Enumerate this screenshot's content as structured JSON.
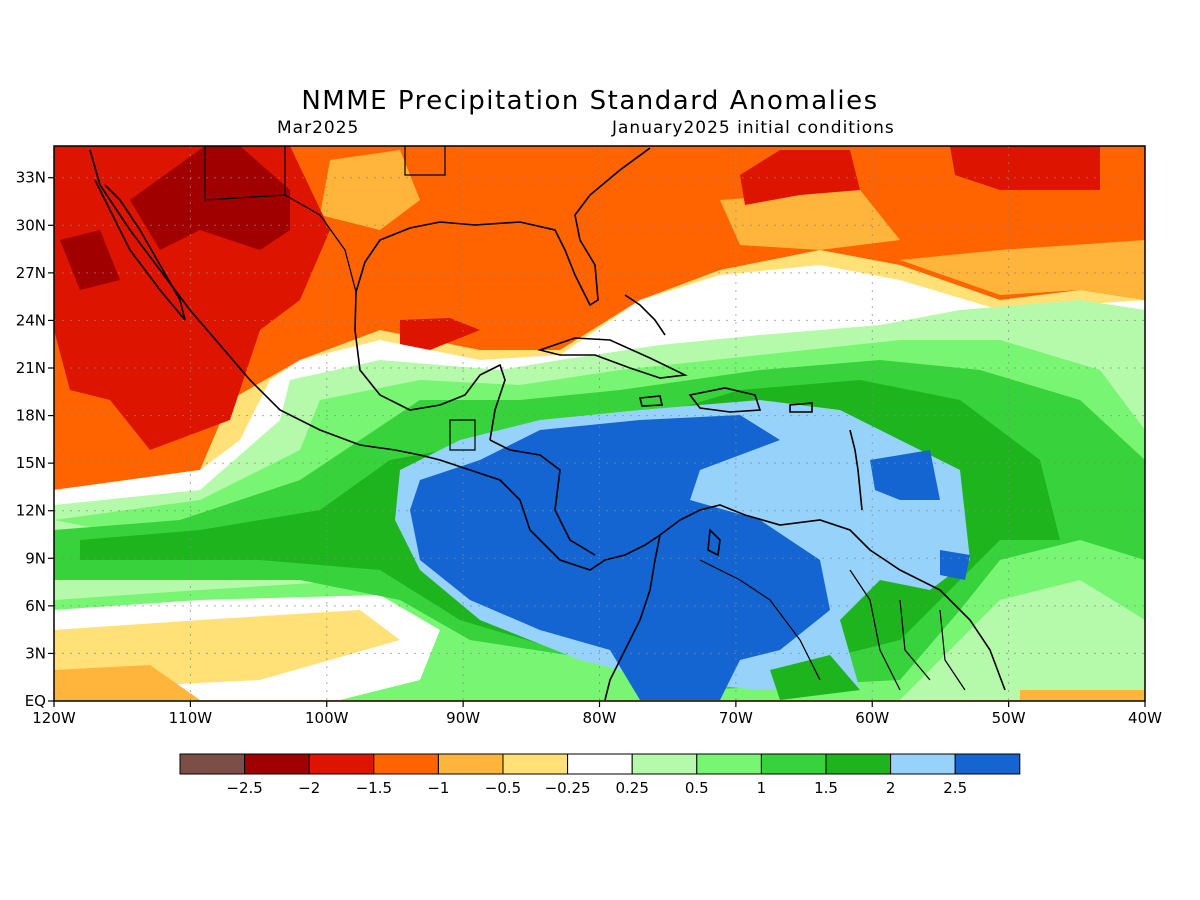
{
  "title": "NMME Precipitation Standard Anomalies",
  "subtitle_left": "Mar2025",
  "subtitle_right": "January2025 initial conditions",
  "map": {
    "lon_range": [
      -120,
      -40
    ],
    "lat_range": [
      0,
      35
    ],
    "lon_ticks": [
      {
        "lon": -120,
        "label": "120W"
      },
      {
        "lon": -110,
        "label": "110W"
      },
      {
        "lon": -100,
        "label": "100W"
      },
      {
        "lon": -90,
        "label": "90W"
      },
      {
        "lon": -80,
        "label": "80W"
      },
      {
        "lon": -70,
        "label": "70W"
      },
      {
        "lon": -60,
        "label": "60W"
      },
      {
        "lon": -50,
        "label": "50W"
      },
      {
        "lon": -40,
        "label": "40W"
      }
    ],
    "lat_ticks": [
      {
        "lat": 0,
        "label": "EQ"
      },
      {
        "lat": 3,
        "label": "3N"
      },
      {
        "lat": 6,
        "label": "6N"
      },
      {
        "lat": 9,
        "label": "9N"
      },
      {
        "lat": 12,
        "label": "12N"
      },
      {
        "lat": 15,
        "label": "15N"
      },
      {
        "lat": 18,
        "label": "18N"
      },
      {
        "lat": 21,
        "label": "21N"
      },
      {
        "lat": 24,
        "label": "24N"
      },
      {
        "lat": 27,
        "label": "27N"
      },
      {
        "lat": 30,
        "label": "30N"
      },
      {
        "lat": 33,
        "label": "33N"
      }
    ],
    "gridlines": true
  },
  "colorbar": {
    "colors": [
      "#7b4f45",
      "#a00000",
      "#dc1400",
      "#ff6400",
      "#ffb43c",
      "#ffe178",
      "#ffffff",
      "#b4faaa",
      "#78f573",
      "#37d23c",
      "#1eb41e",
      "#96d2fa",
      "#1464d2"
    ],
    "labels": [
      "-2.5",
      "-2",
      "-1.5",
      "-1",
      "-0.5",
      "-0.25",
      "0.25",
      "0.5",
      "1",
      "1.5",
      "2",
      "2.5"
    ]
  }
}
